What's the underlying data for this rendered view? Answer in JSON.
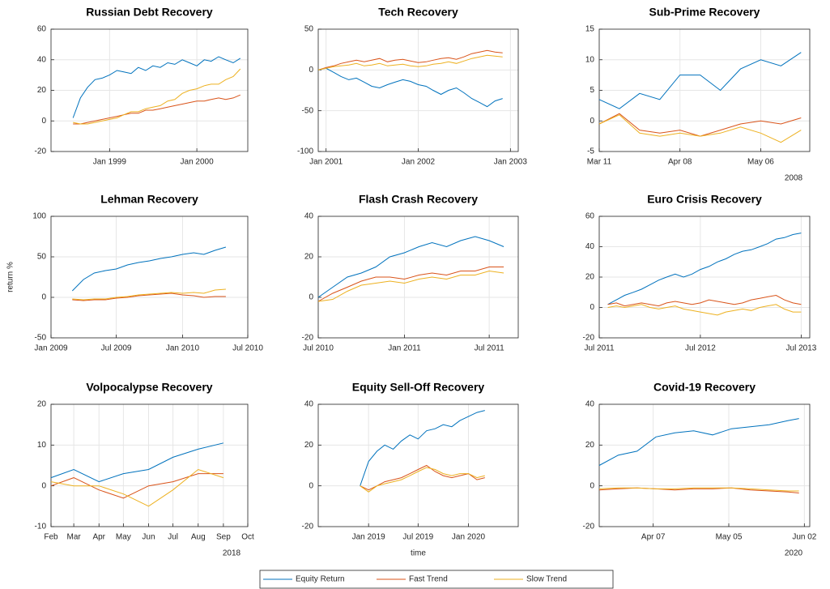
{
  "legend": [
    {
      "name": "Equity Return",
      "color": "#0072BD"
    },
    {
      "name": "Fast Trend",
      "color": "#D95319"
    },
    {
      "name": "Slow Trend",
      "color": "#EDB120"
    }
  ],
  "chart_data": [
    {
      "type": "line",
      "title": "Russian Debt Recovery",
      "grid": true,
      "xlim": [
        "1998-05",
        "2000-08"
      ],
      "xticks": [
        {
          "value": "1999-01",
          "label": "Jan 1999"
        },
        {
          "value": "2000-01",
          "label": "Jan 2000"
        }
      ],
      "ylim": [
        -20,
        60
      ],
      "yticks": [
        -20,
        0,
        20,
        40,
        60
      ],
      "x": [
        "1998-08",
        "1998-09",
        "1998-10",
        "1998-11",
        "1998-12",
        "1999-01",
        "1999-02",
        "1999-03",
        "1999-04",
        "1999-05",
        "1999-06",
        "1999-07",
        "1999-08",
        "1999-09",
        "1999-10",
        "1999-11",
        "1999-12",
        "2000-01",
        "2000-02",
        "2000-03",
        "2000-04",
        "2000-05",
        "2000-06",
        "2000-07"
      ],
      "series": [
        {
          "values": [
            2,
            15,
            22,
            27,
            28,
            30,
            33,
            32,
            31,
            35,
            33,
            36,
            35,
            38,
            37,
            40,
            38,
            36,
            40,
            39,
            42,
            40,
            38,
            41
          ]
        },
        {
          "values": [
            -2,
            -2,
            -1,
            0,
            1,
            2,
            3,
            4,
            5,
            5,
            7,
            7,
            8,
            9,
            10,
            11,
            12,
            13,
            13,
            14,
            15,
            14,
            15,
            17
          ]
        },
        {
          "values": [
            -1,
            -2,
            -2,
            -1,
            0,
            1,
            2,
            4,
            6,
            6,
            8,
            9,
            10,
            13,
            14,
            18,
            20,
            21,
            23,
            24,
            24,
            27,
            29,
            34
          ]
        }
      ]
    },
    {
      "type": "line",
      "title": "Tech Recovery",
      "grid": true,
      "xlim": [
        "2000-12",
        "2003-02"
      ],
      "xticks": [
        {
          "value": "2001-01",
          "label": "Jan 2001"
        },
        {
          "value": "2002-01",
          "label": "Jan 2002"
        },
        {
          "value": "2003-01",
          "label": "Jan 2003"
        }
      ],
      "ylim": [
        -100,
        50
      ],
      "yticks": [
        -100,
        -50,
        0,
        50
      ],
      "x": [
        "2000-12",
        "2001-01",
        "2001-02",
        "2001-03",
        "2001-04",
        "2001-05",
        "2001-06",
        "2001-07",
        "2001-08",
        "2001-09",
        "2001-10",
        "2001-11",
        "2001-12",
        "2002-01",
        "2002-02",
        "2002-03",
        "2002-04",
        "2002-05",
        "2002-06",
        "2002-07",
        "2002-08",
        "2002-09",
        "2002-10",
        "2002-11",
        "2002-12"
      ],
      "series": [
        {
          "values": [
            0,
            2,
            -3,
            -8,
            -12,
            -10,
            -15,
            -20,
            -22,
            -18,
            -15,
            -12,
            -14,
            -18,
            -20,
            -25,
            -30,
            -25,
            -22,
            -28,
            -35,
            -40,
            -45,
            -38,
            -35
          ]
        },
        {
          "values": [
            0,
            3,
            5,
            8,
            10,
            12,
            10,
            12,
            14,
            10,
            12,
            13,
            11,
            9,
            10,
            12,
            14,
            15,
            13,
            16,
            20,
            22,
            24,
            22,
            21
          ]
        },
        {
          "values": [
            0,
            2,
            4,
            5,
            6,
            8,
            5,
            6,
            8,
            5,
            6,
            7,
            5,
            4,
            5,
            7,
            8,
            10,
            8,
            11,
            14,
            16,
            18,
            17,
            16
          ]
        }
      ]
    },
    {
      "type": "line",
      "title": "Sub-Prime Recovery",
      "grid": true,
      "year_label": "2008",
      "xlim": [
        "2008-03-11",
        "2008-05-23"
      ],
      "xticks": [
        {
          "value": "2008-03-11",
          "label": "Mar 11"
        },
        {
          "value": "2008-04-08",
          "label": "Apr 08"
        },
        {
          "value": "2008-05-06",
          "label": "May 06"
        }
      ],
      "ylim": [
        -5,
        15
      ],
      "yticks": [
        -5,
        0,
        5,
        10,
        15
      ],
      "x": [
        "2008-03-11",
        "2008-03-18",
        "2008-03-25",
        "2008-04-01",
        "2008-04-08",
        "2008-04-15",
        "2008-04-22",
        "2008-04-29",
        "2008-05-06",
        "2008-05-13",
        "2008-05-20"
      ],
      "series": [
        {
          "values": [
            3.5,
            2,
            4.5,
            3.5,
            7.5,
            7.5,
            5,
            8.5,
            10,
            9,
            11.2
          ]
        },
        {
          "values": [
            -0.5,
            1.2,
            -1.5,
            -2,
            -1.5,
            -2.5,
            -1.5,
            -0.5,
            0,
            -0.5,
            0.5
          ]
        },
        {
          "values": [
            -0.5,
            1,
            -2,
            -2.5,
            -2,
            -2.5,
            -2,
            -1,
            -2,
            -3.5,
            -1.5
          ]
        }
      ]
    },
    {
      "type": "line",
      "title": "Lehman Recovery",
      "grid": true,
      "ylabel": "return %",
      "xlim": [
        "2009-01",
        "2010-07"
      ],
      "xticks": [
        {
          "value": "2009-01",
          "label": "Jan 2009"
        },
        {
          "value": "2009-07",
          "label": "Jul 2009"
        },
        {
          "value": "2010-01",
          "label": "Jan 2010"
        },
        {
          "value": "2010-07",
          "label": "Jul 2010"
        }
      ],
      "ylim": [
        -50,
        100
      ],
      "yticks": [
        -50,
        0,
        50,
        100
      ],
      "x": [
        "2009-03",
        "2009-04",
        "2009-05",
        "2009-06",
        "2009-07",
        "2009-08",
        "2009-09",
        "2009-10",
        "2009-11",
        "2009-12",
        "2010-01",
        "2010-02",
        "2010-03",
        "2010-04",
        "2010-05"
      ],
      "series": [
        {
          "values": [
            8,
            22,
            30,
            33,
            35,
            40,
            43,
            45,
            48,
            50,
            53,
            55,
            53,
            58,
            62
          ]
        },
        {
          "values": [
            -3,
            -4,
            -3,
            -3,
            -1,
            0,
            2,
            3,
            4,
            5,
            3,
            2,
            0,
            1,
            1
          ]
        },
        {
          "values": [
            -2,
            -3,
            -2,
            -2,
            0,
            1,
            3,
            4,
            5,
            6,
            5,
            6,
            5,
            9,
            10
          ]
        }
      ]
    },
    {
      "type": "line",
      "title": "Flash Crash Recovery",
      "grid": true,
      "xlim": [
        "2010-07",
        "2011-09"
      ],
      "xticks": [
        {
          "value": "2010-07",
          "label": "Jul 2010"
        },
        {
          "value": "2011-01",
          "label": "Jan 2011"
        },
        {
          "value": "2011-07",
          "label": "Jul 2011"
        }
      ],
      "ylim": [
        -20,
        40
      ],
      "yticks": [
        -20,
        0,
        20,
        40
      ],
      "x": [
        "2010-07",
        "2010-08",
        "2010-09",
        "2010-10",
        "2010-11",
        "2010-12",
        "2011-01",
        "2011-02",
        "2011-03",
        "2011-04",
        "2011-05",
        "2011-06",
        "2011-07",
        "2011-08"
      ],
      "series": [
        {
          "values": [
            0,
            5,
            10,
            12,
            15,
            20,
            22,
            25,
            27,
            25,
            28,
            30,
            28,
            25
          ]
        },
        {
          "values": [
            -2,
            2,
            5,
            8,
            10,
            10,
            9,
            11,
            12,
            11,
            13,
            13,
            15,
            15
          ]
        },
        {
          "values": [
            -2,
            -1,
            3,
            6,
            7,
            8,
            7,
            9,
            10,
            9,
            11,
            11,
            13,
            12
          ]
        }
      ]
    },
    {
      "type": "line",
      "title": "Euro Crisis Recovery",
      "grid": true,
      "xlim": [
        "2011-07",
        "2013-08"
      ],
      "xticks": [
        {
          "value": "2011-07",
          "label": "Jul 2011"
        },
        {
          "value": "2012-07",
          "label": "Jul 2012"
        },
        {
          "value": "2013-07",
          "label": "Jul 2013"
        }
      ],
      "ylim": [
        -20,
        60
      ],
      "yticks": [
        -20,
        0,
        20,
        40,
        60
      ],
      "x": [
        "2011-08",
        "2011-09",
        "2011-10",
        "2011-11",
        "2011-12",
        "2012-01",
        "2012-02",
        "2012-03",
        "2012-04",
        "2012-05",
        "2012-06",
        "2012-07",
        "2012-08",
        "2012-09",
        "2012-10",
        "2012-11",
        "2012-12",
        "2013-01",
        "2013-02",
        "2013-03",
        "2013-04",
        "2013-05",
        "2013-06",
        "2013-07"
      ],
      "series": [
        {
          "values": [
            2,
            5,
            8,
            10,
            12,
            15,
            18,
            20,
            22,
            20,
            22,
            25,
            27,
            30,
            32,
            35,
            37,
            38,
            40,
            42,
            45,
            46,
            48,
            49
          ]
        },
        {
          "values": [
            2,
            3,
            1,
            2,
            3,
            2,
            1,
            3,
            4,
            3,
            2,
            3,
            5,
            4,
            3,
            2,
            3,
            5,
            6,
            7,
            8,
            5,
            3,
            2
          ]
        },
        {
          "values": [
            0,
            1,
            0,
            1,
            2,
            0,
            -1,
            0,
            1,
            -1,
            -2,
            -3,
            -4,
            -5,
            -3,
            -2,
            -1,
            -2,
            0,
            1,
            2,
            -1,
            -3,
            -3
          ]
        }
      ]
    },
    {
      "type": "line",
      "title": "Volpocalypse Recovery",
      "grid": true,
      "year_label": "2018",
      "xlim": [
        "2018-02",
        "2018-10"
      ],
      "xticks": [
        {
          "value": "2018-02",
          "label": "Feb"
        },
        {
          "value": "2018-03",
          "label": "Mar"
        },
        {
          "value": "2018-04",
          "label": "Apr"
        },
        {
          "value": "2018-05",
          "label": "May"
        },
        {
          "value": "2018-06",
          "label": "Jun"
        },
        {
          "value": "2018-07",
          "label": "Jul"
        },
        {
          "value": "2018-08",
          "label": "Aug"
        },
        {
          "value": "2018-09",
          "label": "Sep"
        },
        {
          "value": "2018-10",
          "label": "Oct"
        }
      ],
      "ylim": [
        -10,
        20
      ],
      "yticks": [
        -10,
        0,
        10,
        20
      ],
      "x": [
        "2018-02",
        "2018-03",
        "2018-04",
        "2018-05",
        "2018-06",
        "2018-07",
        "2018-08",
        "2018-09"
      ],
      "series": [
        {
          "values": [
            2,
            4,
            1,
            3,
            4,
            7,
            9,
            10.5
          ]
        },
        {
          "values": [
            0,
            2,
            -1,
            -3,
            0,
            1,
            3,
            3
          ]
        },
        {
          "values": [
            1,
            0,
            0,
            -2,
            -5,
            -1,
            4,
            2
          ]
        }
      ]
    },
    {
      "type": "line",
      "title": "Equity Sell-Off Recovery",
      "grid": true,
      "xlabel": "time",
      "xlim": [
        "2018-07",
        "2020-07"
      ],
      "xticks": [
        {
          "value": "2019-01",
          "label": "Jan 2019"
        },
        {
          "value": "2019-07",
          "label": "Jul 2019"
        },
        {
          "value": "2020-01",
          "label": "Jan 2020"
        }
      ],
      "ylim": [
        -20,
        40
      ],
      "yticks": [
        -20,
        0,
        20,
        40
      ],
      "x": [
        "2018-12",
        "2019-01",
        "2019-02",
        "2019-03",
        "2019-04",
        "2019-05",
        "2019-06",
        "2019-07",
        "2019-08",
        "2019-09",
        "2019-10",
        "2019-11",
        "2019-12",
        "2020-01",
        "2020-02",
        "2020-03"
      ],
      "series": [
        {
          "values": [
            0,
            12,
            17,
            20,
            18,
            22,
            25,
            23,
            27,
            28,
            30,
            29,
            32,
            34,
            36,
            37
          ]
        },
        {
          "values": [
            0,
            -2,
            0,
            2,
            3,
            4,
            6,
            8,
            10,
            7,
            5,
            4,
            5,
            6,
            3,
            4
          ]
        },
        {
          "values": [
            0,
            -3,
            0,
            1,
            2,
            3,
            5,
            7,
            9,
            8,
            6,
            5,
            6,
            6,
            4,
            5
          ]
        }
      ]
    },
    {
      "type": "line",
      "title": "Covid-19 Recovery",
      "grid": true,
      "year_label": "2020",
      "xlim": [
        "2020-03-18",
        "2020-06-04"
      ],
      "xticks": [
        {
          "value": "2020-04-07",
          "label": "Apr 07"
        },
        {
          "value": "2020-05-05",
          "label": "May 05"
        },
        {
          "value": "2020-06-02",
          "label": "Jun 02"
        }
      ],
      "ylim": [
        -20,
        40
      ],
      "yticks": [
        -20,
        0,
        20,
        40
      ],
      "x": [
        "2020-03-18",
        "2020-03-25",
        "2020-04-01",
        "2020-04-08",
        "2020-04-15",
        "2020-04-22",
        "2020-04-29",
        "2020-05-06",
        "2020-05-13",
        "2020-05-20",
        "2020-05-27",
        "2020-05-31"
      ],
      "series": [
        {
          "values": [
            10,
            15,
            17,
            24,
            26,
            27,
            25,
            28,
            29,
            30,
            32,
            33
          ]
        },
        {
          "values": [
            -2,
            -1.5,
            -1,
            -1.5,
            -2,
            -1.5,
            -1.5,
            -1,
            -2,
            -2.5,
            -3,
            -3.5
          ]
        },
        {
          "values": [
            -1.5,
            -1,
            -1,
            -1.5,
            -1.5,
            -1,
            -1,
            -1,
            -1.5,
            -2,
            -2.5,
            -2.5
          ]
        }
      ]
    }
  ]
}
